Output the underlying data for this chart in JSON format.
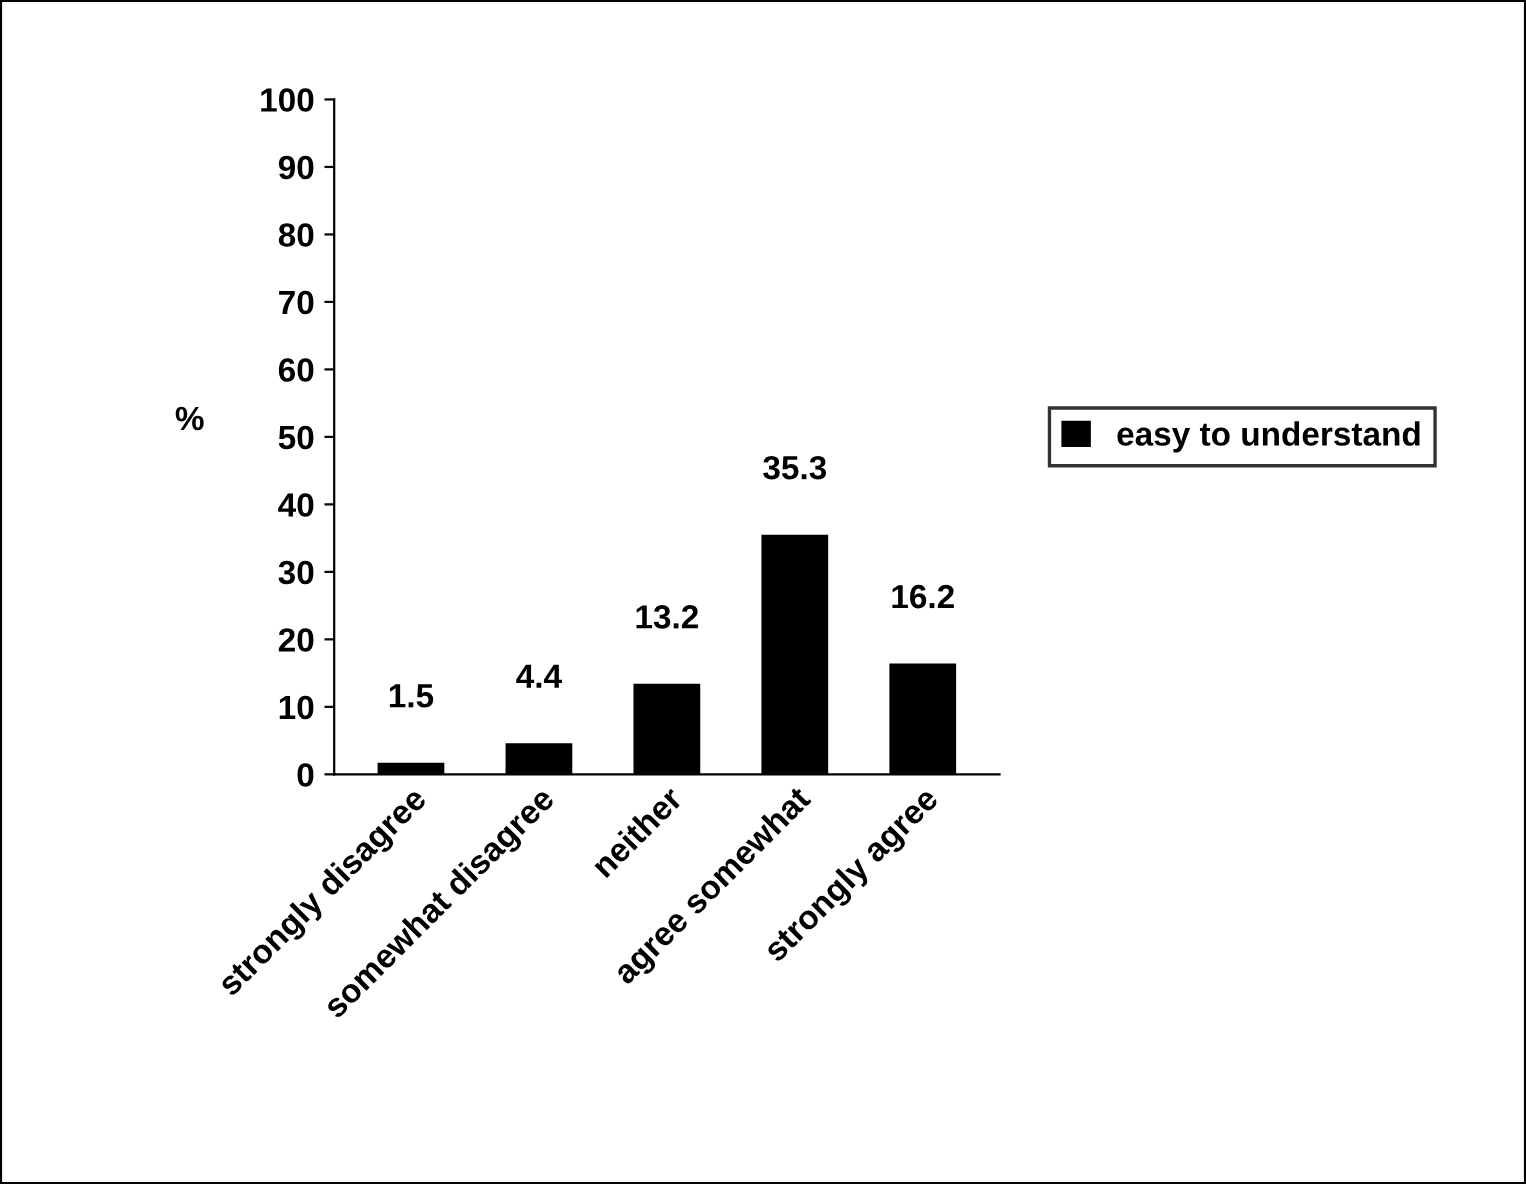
{
  "chart_data": {
    "type": "bar",
    "ylabel": "%",
    "categories": [
      "strongly disagree",
      "somewhat disagree",
      "neither",
      "agree somewhat",
      "strongly agree"
    ],
    "series": [
      {
        "name": "easy to understand",
        "color": "#000000",
        "values": [
          1.5,
          4.4,
          13.2,
          35.3,
          16.2
        ]
      }
    ],
    "ylim": [
      0,
      100
    ],
    "yticks": [
      0,
      10,
      20,
      30,
      40,
      50,
      60,
      70,
      80,
      90,
      100
    ],
    "data_labels": true,
    "legend": "right",
    "grid": false
  }
}
